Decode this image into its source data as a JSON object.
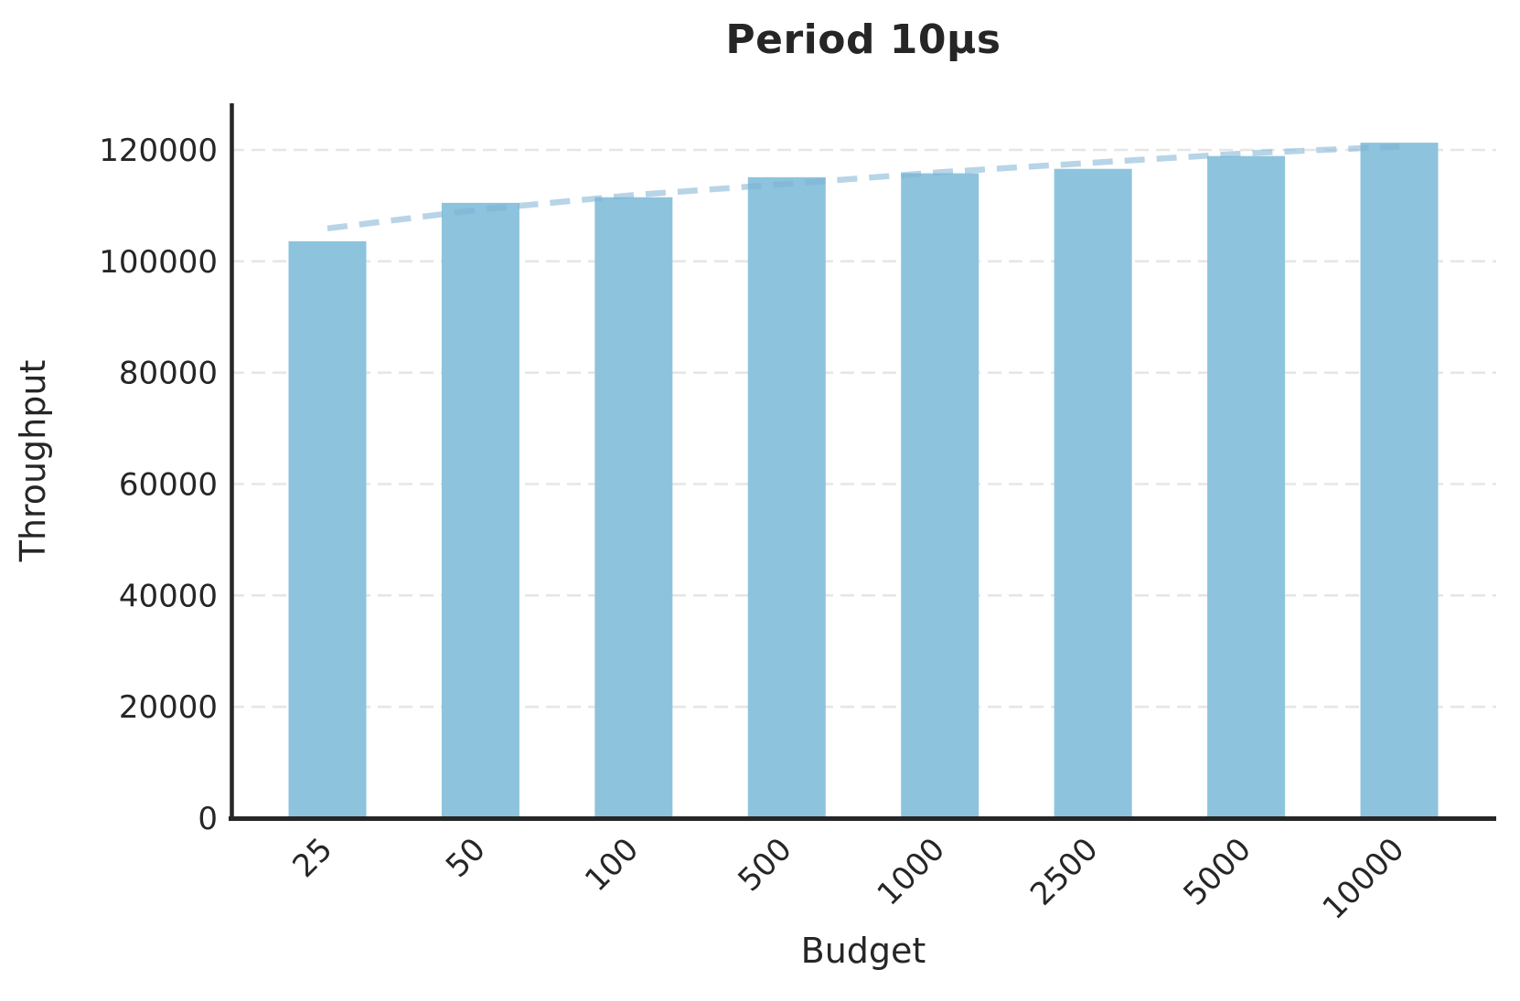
{
  "chart_data": {
    "type": "bar",
    "title": "Period 10µs",
    "xlabel": "Budget",
    "ylabel": "Throughput",
    "categories": [
      "25",
      "50",
      "100",
      "500",
      "1000",
      "2500",
      "5000",
      "10000"
    ],
    "values": [
      103600,
      110500,
      111500,
      115100,
      115800,
      116600,
      118900,
      121300
    ],
    "trend_line": {
      "style": "dashed",
      "note": "estimated fit curve over bar tops",
      "values": [
        105900,
        109300,
        111900,
        113900,
        116000,
        117700,
        119400,
        120600
      ]
    },
    "yticks": [
      0,
      20000,
      40000,
      60000,
      80000,
      100000,
      120000
    ],
    "ylim": [
      0,
      128500
    ],
    "xtick_rotation_deg": 45,
    "grid": "horizontal-dashed",
    "legend": "none",
    "colors": {
      "bar": "#8ec3dd",
      "trend": "rgba(125,177,211,0.55)",
      "grid": "#e6e6e6",
      "axis": "#262626",
      "text": "#262626",
      "background": "#ffffff"
    }
  }
}
